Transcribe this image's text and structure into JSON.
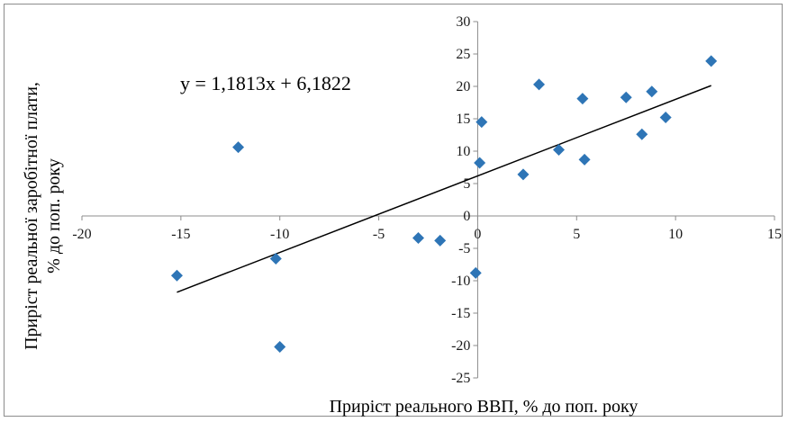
{
  "chart_data": {
    "type": "scatter",
    "title": "",
    "xlabel": "Приріст реального ВВП, % до поп. року",
    "ylabel_line1": "Приріст реальної заробітної плати,",
    "ylabel_line2": "% до поп. року",
    "xlim": [
      -20,
      15
    ],
    "ylim": [
      -25,
      30
    ],
    "x_ticks": [
      -20,
      -15,
      -10,
      -5,
      0,
      5,
      10,
      15
    ],
    "y_ticks": [
      -25,
      -20,
      -15,
      -10,
      -5,
      0,
      5,
      10,
      15,
      20,
      25,
      30
    ],
    "grid": false,
    "marker_color": "#2E75B6",
    "trendline": {
      "equation": "y = 1,1813x  + 6,1822",
      "slope": 1.1813,
      "intercept": 6.1822,
      "x_range": [
        -15.2,
        11.8
      ],
      "color": "#000000"
    },
    "points": [
      {
        "x": -15.2,
        "y": -9.2
      },
      {
        "x": -12.1,
        "y": 10.6
      },
      {
        "x": -10.2,
        "y": -6.6
      },
      {
        "x": -10.0,
        "y": -20.2
      },
      {
        "x": -3.0,
        "y": -3.4
      },
      {
        "x": -1.9,
        "y": -3.8
      },
      {
        "x": -0.1,
        "y": -8.8
      },
      {
        "x": 0.1,
        "y": 8.2
      },
      {
        "x": 0.2,
        "y": 14.5
      },
      {
        "x": 2.3,
        "y": 6.4
      },
      {
        "x": 3.1,
        "y": 20.3
      },
      {
        "x": 4.1,
        "y": 10.2
      },
      {
        "x": 5.3,
        "y": 18.1
      },
      {
        "x": 5.4,
        "y": 8.7
      },
      {
        "x": 7.5,
        "y": 18.3
      },
      {
        "x": 8.3,
        "y": 12.6
      },
      {
        "x": 8.8,
        "y": 19.2
      },
      {
        "x": 9.5,
        "y": 15.2
      },
      {
        "x": 11.8,
        "y": 23.9
      }
    ]
  }
}
